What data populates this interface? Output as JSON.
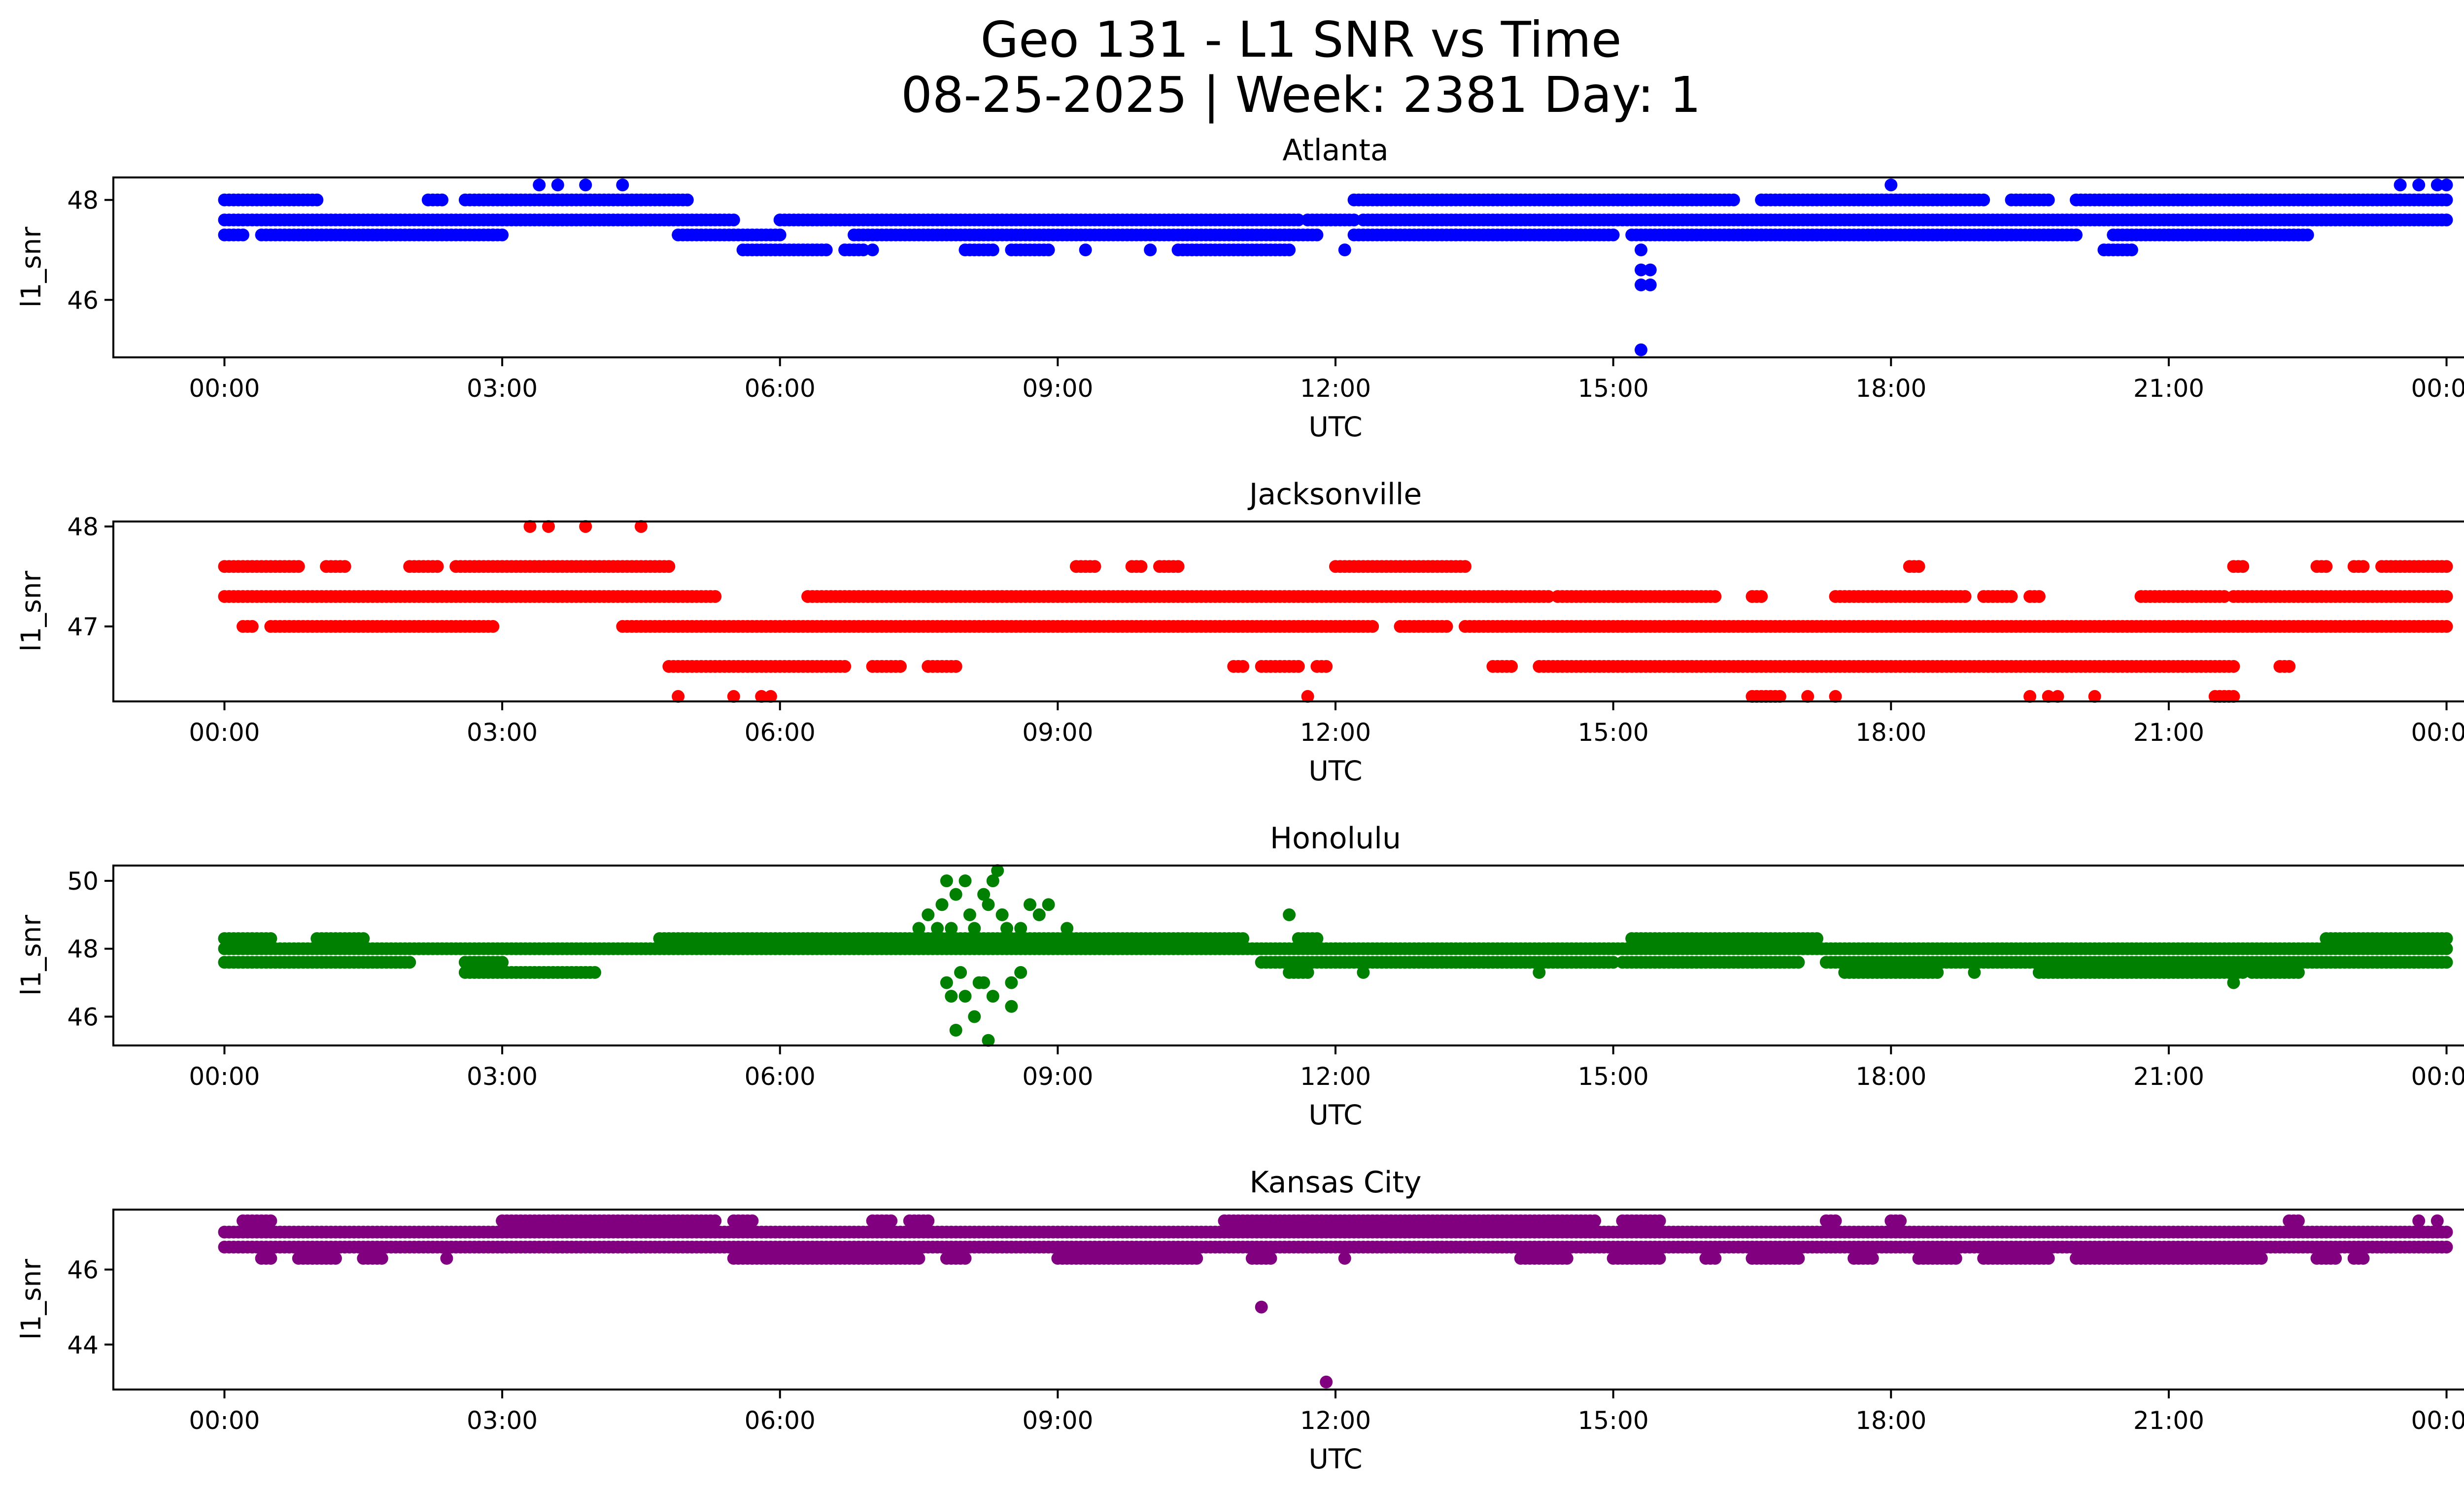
{
  "figure": {
    "title_line1": "Geo 131 - L1 SNR vs Time",
    "title_line2": "08-25-2025 | Week: 2381 Day: 1"
  },
  "x_ticks": [
    "00:00",
    "03:00",
    "06:00",
    "09:00",
    "12:00",
    "15:00",
    "18:00",
    "21:00",
    "00:00"
  ],
  "chart_data": [
    {
      "type": "scatter",
      "title": "Atlanta",
      "xlabel": "UTC",
      "ylabel": "l1_snr",
      "color": "#0000ff",
      "xlim": [
        -1.2,
        25.2
      ],
      "ylim": [
        44.85,
        48.45
      ],
      "yticks": [
        46,
        48
      ],
      "levels": [
        {
          "y": 48.0,
          "segments": [
            [
              0.0,
              1.0
            ],
            [
              2.2,
              2.35
            ],
            [
              2.6,
              5.0
            ],
            [
              12.2,
              16.3
            ],
            [
              16.6,
              19.0
            ],
            [
              19.3,
              19.7
            ],
            [
              20.0,
              24.0
            ]
          ]
        },
        {
          "y": 47.6,
          "segments": [
            [
              0.0,
              5.5
            ],
            [
              6.0,
              11.6
            ],
            [
              11.7,
              12.2
            ],
            [
              12.3,
              24.0
            ]
          ]
        },
        {
          "y": 47.3,
          "segments": [
            [
              0.0,
              0.2
            ],
            [
              0.4,
              3.0
            ],
            [
              4.9,
              6.0
            ],
            [
              6.8,
              11.8
            ],
            [
              12.2,
              15.0
            ],
            [
              15.2,
              20.0
            ],
            [
              20.4,
              22.5
            ]
          ]
        },
        {
          "y": 47.0,
          "segments": [
            [
              5.6,
              6.5
            ],
            [
              6.7,
              6.9
            ],
            [
              8.0,
              8.3
            ],
            [
              8.5,
              8.9
            ],
            [
              10.3,
              11.5
            ],
            [
              20.3,
              20.6
            ]
          ]
        }
      ],
      "points": [
        [
          3.4,
          48.3
        ],
        [
          3.6,
          48.3
        ],
        [
          3.9,
          48.3
        ],
        [
          4.3,
          48.3
        ],
        [
          18.0,
          48.3
        ],
        [
          23.5,
          48.3
        ],
        [
          23.7,
          48.3
        ],
        [
          23.9,
          48.3
        ],
        [
          24.0,
          48.3
        ],
        [
          2.9,
          47.3
        ],
        [
          7.0,
          47.0
        ],
        [
          9.3,
          47.0
        ],
        [
          10.0,
          47.0
        ],
        [
          12.1,
          47.0
        ],
        [
          13.3,
          47.3
        ],
        [
          15.3,
          47.0
        ],
        [
          15.3,
          46.6
        ],
        [
          15.4,
          46.6
        ],
        [
          15.3,
          46.3
        ],
        [
          15.4,
          46.3
        ],
        [
          15.3,
          45.0
        ]
      ]
    },
    {
      "type": "scatter",
      "title": "Jacksonville",
      "xlabel": "UTC",
      "ylabel": "l1_snr",
      "color": "#ff0000",
      "xlim": [
        -1.2,
        25.2
      ],
      "ylim": [
        46.25,
        48.05
      ],
      "yticks": [
        47,
        48
      ],
      "levels": [
        {
          "y": 47.6,
          "segments": [
            [
              0.0,
              0.8
            ],
            [
              1.1,
              1.3
            ],
            [
              2.0,
              2.3
            ],
            [
              2.5,
              4.8
            ],
            [
              9.2,
              9.4
            ],
            [
              9.8,
              9.9
            ],
            [
              10.1,
              10.3
            ],
            [
              12.0,
              13.4
            ],
            [
              18.2,
              18.3
            ],
            [
              21.7,
              21.8
            ],
            [
              22.6,
              22.7
            ],
            [
              23.0,
              23.1
            ],
            [
              23.3,
              24.0
            ]
          ]
        },
        {
          "y": 47.3,
          "segments": [
            [
              0.0,
              5.3
            ],
            [
              6.3,
              14.3
            ],
            [
              14.4,
              16.1
            ],
            [
              16.5,
              16.6
            ],
            [
              17.4,
              18.8
            ],
            [
              19.0,
              19.3
            ],
            [
              19.5,
              19.6
            ],
            [
              20.7,
              21.6
            ],
            [
              21.7,
              24.0
            ]
          ]
        },
        {
          "y": 47.0,
          "segments": [
            [
              0.2,
              0.3
            ],
            [
              0.5,
              2.9
            ],
            [
              4.3,
              12.4
            ],
            [
              12.7,
              13.2
            ],
            [
              13.4,
              24.0
            ]
          ]
        },
        {
          "y": 46.6,
          "segments": [
            [
              4.8,
              6.7
            ],
            [
              7.0,
              7.3
            ],
            [
              7.6,
              7.9
            ],
            [
              10.9,
              11.0
            ],
            [
              11.2,
              11.6
            ],
            [
              11.8,
              11.9
            ],
            [
              13.7,
              13.9
            ],
            [
              14.2,
              21.7
            ],
            [
              22.2,
              22.3
            ]
          ]
        },
        {
          "y": 46.3,
          "segments": [
            [
              16.5,
              16.8
            ],
            [
              21.5,
              21.7
            ]
          ]
        }
      ],
      "points": [
        [
          3.3,
          48.0
        ],
        [
          3.5,
          48.0
        ],
        [
          3.9,
          48.0
        ],
        [
          4.5,
          48.0
        ],
        [
          4.9,
          46.3
        ],
        [
          5.5,
          46.3
        ],
        [
          5.8,
          46.3
        ],
        [
          5.9,
          46.3
        ],
        [
          11.7,
          46.3
        ],
        [
          17.1,
          46.3
        ],
        [
          17.4,
          46.3
        ],
        [
          19.5,
          46.3
        ],
        [
          19.7,
          46.3
        ],
        [
          19.8,
          46.3
        ],
        [
          20.2,
          46.3
        ]
      ]
    },
    {
      "type": "scatter",
      "title": "Honolulu",
      "xlabel": "UTC",
      "ylabel": "l1_snr",
      "color": "#008000",
      "xlim": [
        -1.2,
        25.2
      ],
      "ylim": [
        45.15,
        50.45
      ],
      "yticks": [
        46,
        48,
        50
      ],
      "levels": [
        {
          "y": 48.3,
          "segments": [
            [
              0.0,
              0.5
            ],
            [
              1.0,
              1.5
            ],
            [
              4.7,
              11.0
            ],
            [
              11.6,
              11.8
            ],
            [
              15.2,
              17.2
            ],
            [
              22.7,
              24.0
            ]
          ]
        },
        {
          "y": 48.0,
          "segments": [
            [
              0.0,
              12.0
            ],
            [
              12.0,
              24.0
            ]
          ]
        },
        {
          "y": 47.6,
          "segments": [
            [
              0.0,
              2.0
            ],
            [
              2.6,
              3.0
            ],
            [
              11.2,
              15.0
            ],
            [
              15.1,
              17.0
            ],
            [
              17.3,
              24.0
            ]
          ]
        },
        {
          "y": 47.3,
          "segments": [
            [
              2.6,
              4.0
            ],
            [
              11.5,
              11.7
            ],
            [
              17.5,
              18.5
            ],
            [
              19.6,
              21.8
            ],
            [
              21.9,
              22.4
            ]
          ]
        }
      ],
      "points": [
        [
          7.5,
          48.6
        ],
        [
          7.6,
          49.0
        ],
        [
          7.7,
          48.6
        ],
        [
          7.75,
          49.3
        ],
        [
          7.8,
          50.0
        ],
        [
          7.85,
          48.6
        ],
        [
          7.9,
          49.6
        ],
        [
          7.95,
          47.3
        ],
        [
          8.0,
          50.0
        ],
        [
          8.05,
          49.0
        ],
        [
          8.1,
          48.6
        ],
        [
          8.15,
          47.0
        ],
        [
          8.2,
          49.6
        ],
        [
          8.25,
          49.3
        ],
        [
          8.3,
          50.0
        ],
        [
          8.35,
          50.3
        ],
        [
          8.4,
          49.0
        ],
        [
          8.45,
          48.6
        ],
        [
          8.5,
          47.0
        ],
        [
          8.6,
          48.6
        ],
        [
          8.7,
          49.3
        ],
        [
          8.8,
          49.0
        ],
        [
          8.9,
          49.3
        ],
        [
          9.1,
          48.6
        ],
        [
          7.8,
          47.0
        ],
        [
          7.85,
          46.6
        ],
        [
          7.9,
          45.6
        ],
        [
          8.0,
          46.6
        ],
        [
          8.1,
          46.0
        ],
        [
          8.2,
          47.0
        ],
        [
          8.25,
          45.3
        ],
        [
          8.3,
          46.6
        ],
        [
          8.5,
          46.3
        ],
        [
          8.6,
          47.3
        ],
        [
          11.5,
          49.0
        ],
        [
          12.3,
          47.3
        ],
        [
          14.2,
          47.3
        ],
        [
          18.9,
          47.3
        ],
        [
          20.4,
          47.3
        ],
        [
          21.7,
          47.0
        ],
        [
          23.9,
          47.6
        ]
      ]
    },
    {
      "type": "scatter",
      "title": "Kansas City",
      "xlabel": "UTC",
      "ylabel": "l1_snr",
      "color": "#800080",
      "xlim": [
        -1.2,
        25.2
      ],
      "ylim": [
        42.8,
        47.6
      ],
      "yticks": [
        44,
        46
      ],
      "levels": [
        {
          "y": 47.3,
          "segments": [
            [
              0.2,
              0.5
            ],
            [
              3.0,
              5.3
            ],
            [
              5.5,
              5.7
            ],
            [
              7.0,
              7.2
            ],
            [
              7.4,
              7.6
            ],
            [
              10.8,
              14.8
            ],
            [
              15.1,
              15.5
            ],
            [
              17.3,
              17.4
            ],
            [
              18.0,
              18.1
            ],
            [
              22.3,
              22.4
            ]
          ]
        },
        {
          "y": 47.0,
          "segments": [
            [
              0.0,
              24.0
            ]
          ]
        },
        {
          "y": 46.6,
          "segments": [
            [
              0.0,
              24.0
            ]
          ]
        },
        {
          "y": 46.3,
          "segments": [
            [
              0.4,
              0.5
            ],
            [
              0.8,
              1.2
            ],
            [
              1.5,
              1.7
            ],
            [
              5.5,
              7.5
            ],
            [
              7.8,
              8.0
            ],
            [
              9.0,
              10.5
            ],
            [
              11.1,
              11.3
            ],
            [
              14.0,
              14.5
            ],
            [
              15.0,
              15.5
            ],
            [
              16.0,
              16.1
            ],
            [
              16.5,
              17.0
            ],
            [
              17.6,
              17.8
            ],
            [
              18.3,
              18.7
            ],
            [
              19.0,
              19.7
            ],
            [
              20.0,
              22.0
            ],
            [
              22.6,
              22.8
            ],
            [
              23.0,
              23.1
            ]
          ]
        }
      ],
      "points": [
        [
          11.2,
          45.0
        ],
        [
          11.9,
          43.0
        ],
        [
          12.1,
          46.3
        ],
        [
          13.1,
          46.6
        ],
        [
          2.4,
          46.3
        ],
        [
          23.7,
          47.3
        ],
        [
          23.9,
          47.3
        ]
      ]
    }
  ]
}
